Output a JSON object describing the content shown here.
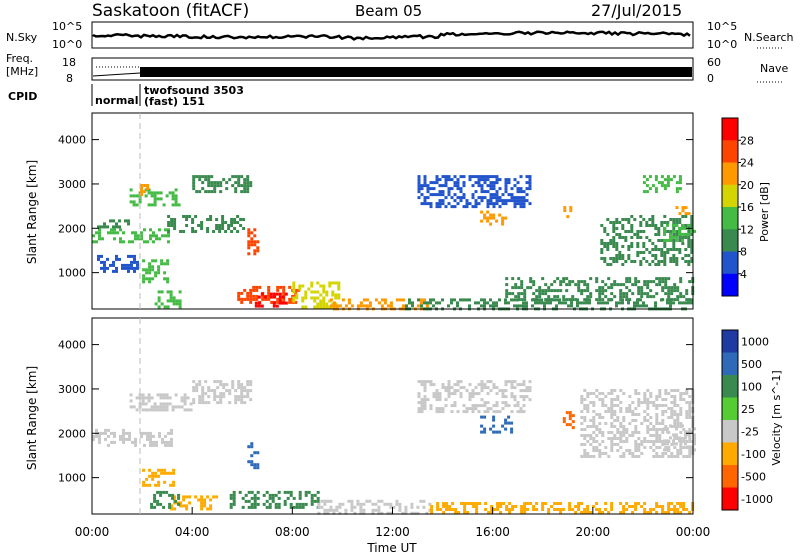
{
  "header": {
    "title": "Saskatoon (fitACF)",
    "beam": "Beam 05",
    "date": "27/Jul/2015"
  },
  "top_panels": {
    "nsky_label": "N.Sky",
    "nsky_ticks": [
      "10^5",
      "10^0"
    ],
    "nsearch_label": "N.Search",
    "nsearch_ticks": [
      "10^5",
      "10^0"
    ],
    "freq_label_1": "Freq.",
    "freq_label_2": "[MHz]",
    "freq_ticks": [
      "18",
      "8"
    ],
    "nave_label": "Nave",
    "nave_ticks": [
      "60",
      "0"
    ],
    "cpid_label": "CPID",
    "cpid_segments": [
      {
        "name": "normal",
        "start_hour": 0,
        "end_hour": 1.85
      },
      {
        "name": "twofsound 3503",
        "sub": "(fast) 151",
        "start_hour": 1.85,
        "end_hour": 24
      }
    ]
  },
  "chart_data": [
    {
      "type": "heatmap",
      "name": "power",
      "xlabel": "",
      "ylabel": "Slant Range [km]",
      "xlim_hours": [
        0,
        24
      ],
      "ylim": [
        180,
        4600
      ],
      "yticks": [
        "1000",
        "2000",
        "3000",
        "4000"
      ],
      "colorbar": {
        "label": "Power [dB]",
        "ticks": [
          "4",
          "8",
          "12",
          "16",
          "20",
          "24",
          "28"
        ],
        "range": [
          0,
          30
        ],
        "colors": [
          "#0000ff",
          "#2255cc",
          "#3a8a50",
          "#44bb44",
          "#d4d400",
          "#ff9900",
          "#ff4400",
          "#ff0000"
        ]
      },
      "regions": [
        {
          "time": [
            0,
            3.1
          ],
          "range": [
            1700,
            2000
          ],
          "level": 12
        },
        {
          "time": [
            0.2,
            1.4
          ],
          "range": [
            2000,
            2200
          ],
          "level": 8
        },
        {
          "time": [
            1.5,
            3.5
          ],
          "range": [
            2500,
            2900
          ],
          "level": 14
        },
        {
          "time": [
            1.8,
            2.2
          ],
          "range": [
            2750,
            3000
          ],
          "level": 22
        },
        {
          "time": [
            0.2,
            1.8
          ],
          "range": [
            1000,
            1400
          ],
          "level": 6
        },
        {
          "time": [
            2.0,
            3.0
          ],
          "range": [
            800,
            1300
          ],
          "level": 14
        },
        {
          "time": [
            2.5,
            3.5
          ],
          "range": [
            200,
            600
          ],
          "level": 14
        },
        {
          "time": [
            3.0,
            6.0
          ],
          "range": [
            1900,
            2300
          ],
          "level": 10
        },
        {
          "time": [
            4.0,
            6.3
          ],
          "range": [
            2800,
            3200
          ],
          "level": 8
        },
        {
          "time": [
            6.2,
            6.6
          ],
          "range": [
            1400,
            2000
          ],
          "level": 24
        },
        {
          "time": [
            5.8,
            8.2
          ],
          "range": [
            300,
            700
          ],
          "level": 26
        },
        {
          "time": [
            6.5,
            7.8
          ],
          "range": [
            250,
            550
          ],
          "level": 29
        },
        {
          "time": [
            8.0,
            9.8
          ],
          "range": [
            250,
            800
          ],
          "level": 18
        },
        {
          "time": [
            9.5,
            13.5
          ],
          "range": [
            200,
            420
          ],
          "level": 22
        },
        {
          "time": [
            12.5,
            24
          ],
          "range": [
            200,
            420
          ],
          "level": 8
        },
        {
          "time": [
            16.5,
            24
          ],
          "range": [
            400,
            900
          ],
          "level": 8
        },
        {
          "time": [
            13.0,
            17.5
          ],
          "range": [
            2500,
            3200
          ],
          "level": 7
        },
        {
          "time": [
            15.5,
            16.5
          ],
          "range": [
            2100,
            2400
          ],
          "level": 20
        },
        {
          "time": [
            18.7,
            19.1
          ],
          "range": [
            2100,
            2500
          ],
          "level": 22
        },
        {
          "time": [
            20.3,
            24
          ],
          "range": [
            1200,
            2300
          ],
          "level": 8
        },
        {
          "time": [
            22.0,
            23.5
          ],
          "range": [
            2800,
            3200
          ],
          "level": 14
        },
        {
          "time": [
            22.8,
            24
          ],
          "range": [
            1700,
            2100
          ],
          "level": 14
        },
        {
          "time": [
            23.3,
            23.8
          ],
          "range": [
            2300,
            2500
          ],
          "level": 22
        }
      ]
    },
    {
      "type": "heatmap",
      "name": "velocity",
      "xlabel": "Time UT",
      "ylabel": "Slant Range [km]",
      "xlim_hours": [
        0,
        24
      ],
      "ylim": [
        180,
        4600
      ],
      "yticks": [
        "1000",
        "2000",
        "3000",
        "4000"
      ],
      "xticks": [
        "00:00",
        "04:00",
        "08:00",
        "12:00",
        "16:00",
        "20:00",
        "00:00"
      ],
      "colorbar": {
        "label": "Velocity [m s^-1]",
        "ticks": [
          "1000",
          "500",
          "100",
          "25",
          "-25",
          "-100",
          "-500",
          "-1000"
        ],
        "colors": [
          "#1f3aa0",
          "#2e6ab8",
          "#3a8a50",
          "#55cc33",
          "#c8c8c8",
          "#ffaa00",
          "#ff6600",
          "#ff0000"
        ]
      },
      "regions": [
        {
          "time": [
            0,
            3.2
          ],
          "range": [
            1700,
            2100
          ],
          "band": "ground"
        },
        {
          "time": [
            1.5,
            4.0
          ],
          "range": [
            2500,
            2900
          ],
          "band": "ground"
        },
        {
          "time": [
            4.0,
            6.3
          ],
          "range": [
            2700,
            3200
          ],
          "band": "ground"
        },
        {
          "time": [
            2.0,
            3.2
          ],
          "range": [
            800,
            1200
          ],
          "band": "-100"
        },
        {
          "time": [
            3.0,
            5.0
          ],
          "range": [
            300,
            600
          ],
          "band": "-100"
        },
        {
          "time": [
            2.2,
            3.5
          ],
          "range": [
            300,
            700
          ],
          "band": "100"
        },
        {
          "time": [
            6.2,
            6.6
          ],
          "range": [
            1200,
            1800
          ],
          "band": "500"
        },
        {
          "time": [
            5.5,
            9.0
          ],
          "range": [
            300,
            700
          ],
          "band": "100"
        },
        {
          "time": [
            9.0,
            13.5
          ],
          "range": [
            200,
            500
          ],
          "band": "ground"
        },
        {
          "time": [
            13.5,
            24
          ],
          "range": [
            200,
            450
          ],
          "band": "-100"
        },
        {
          "time": [
            13.0,
            17.5
          ],
          "range": [
            2500,
            3200
          ],
          "band": "ground"
        },
        {
          "time": [
            15.5,
            16.8
          ],
          "range": [
            2000,
            2400
          ],
          "band": "500"
        },
        {
          "time": [
            18.8,
            19.2
          ],
          "range": [
            2100,
            2500
          ],
          "band": "-500"
        },
        {
          "time": [
            19.5,
            24
          ],
          "range": [
            1500,
            3000
          ],
          "band": "ground"
        },
        {
          "time": [
            22.8,
            24
          ],
          "range": [
            1600,
            2200
          ],
          "band": "ground"
        }
      ]
    }
  ]
}
